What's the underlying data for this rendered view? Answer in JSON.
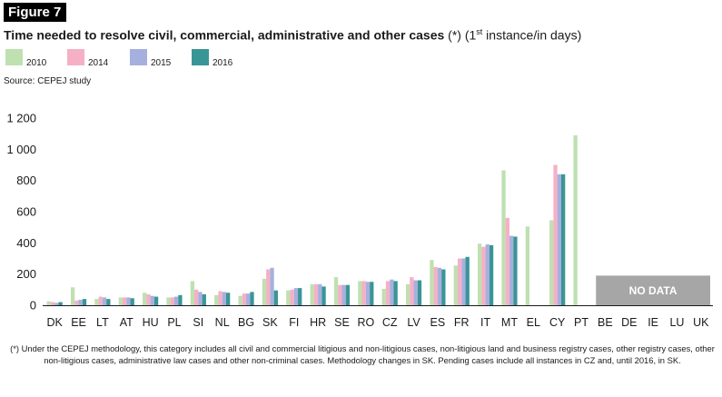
{
  "figure": {
    "label": "Figure 7",
    "title_main": "Time needed to resolve civil, commercial, administrative and other cases",
    "title_note_pre": " (*) (1",
    "title_note_sup": "st",
    "title_note_post": " instance/in days)",
    "source": "Source: CEPEJ study",
    "footnote": "(*) Under the CEPEJ methodology, this category includes all civil and commercial litigious and non-litigious cases, non-litigious land and business registry cases, other registry cases, other non-litigious cases, administrative law cases and other non-criminal cases. Methodology changes in SK. Pending cases include all instances in CZ and, until 2016, in SK."
  },
  "colors": {
    "s2010": "#bfe0b0",
    "s2014": "#f6b0c6",
    "s2015": "#a6b0de",
    "s2016": "#3a9596",
    "nodata": "#a6a6a6"
  },
  "chart_data": {
    "type": "bar",
    "categories": [
      "DK",
      "EE",
      "LT",
      "AT",
      "HU",
      "PL",
      "SI",
      "NL",
      "BG",
      "SK",
      "FI",
      "HR",
      "SE",
      "RO",
      "CZ",
      "LV",
      "ES",
      "FR",
      "IT",
      "MT",
      "EL",
      "CY",
      "PT",
      "BE",
      "DE",
      "IE",
      "LU",
      "UK"
    ],
    "series": [
      {
        "name": "2010",
        "values": [
          25,
          115,
          40,
          50,
          80,
          50,
          155,
          65,
          60,
          170,
          95,
          135,
          180,
          155,
          105,
          135,
          290,
          255,
          395,
          865,
          505,
          545,
          1090,
          null,
          null,
          null,
          null,
          null
        ]
      },
      {
        "name": "2014",
        "values": [
          20,
          30,
          55,
          50,
          70,
          50,
          100,
          90,
          75,
          230,
          100,
          135,
          130,
          155,
          155,
          180,
          245,
          300,
          375,
          560,
          null,
          900,
          null,
          null,
          null,
          null,
          null,
          null
        ]
      },
      {
        "name": "2015",
        "values": [
          15,
          35,
          50,
          50,
          60,
          55,
          85,
          85,
          75,
          240,
          110,
          135,
          130,
          150,
          165,
          160,
          240,
          300,
          390,
          445,
          null,
          840,
          null,
          null,
          null,
          null,
          null,
          null
        ]
      },
      {
        "name": "2016",
        "values": [
          20,
          40,
          40,
          45,
          55,
          65,
          70,
          80,
          85,
          95,
          110,
          120,
          130,
          150,
          155,
          160,
          230,
          310,
          385,
          440,
          null,
          840,
          null,
          null,
          null,
          null,
          null,
          null
        ]
      }
    ],
    "ylim": [
      0,
      1200
    ],
    "yticks": [
      0,
      200,
      400,
      600,
      800,
      1000,
      1200
    ],
    "ytick_labels": [
      "0",
      "200",
      "400",
      "600",
      "800",
      "1 000",
      "1 200"
    ],
    "annotation": "NO DATA",
    "no_data_categories": [
      "BE",
      "DE",
      "IE",
      "LU",
      "UK"
    ],
    "grid": false,
    "legend_position": "top-left"
  }
}
